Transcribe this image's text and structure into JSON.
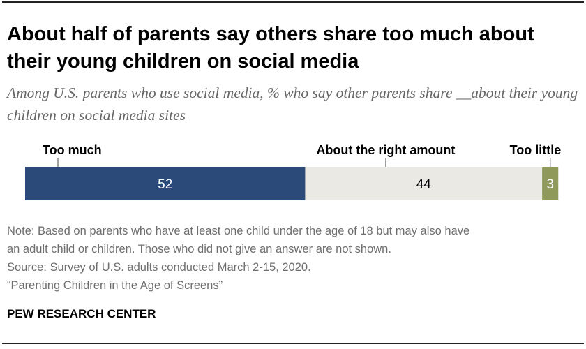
{
  "title": "About half of parents say others share too much about their young children on social media",
  "subtitle": "Among U.S. parents who use social media, % who say other parents share __about their young children on social media sites",
  "chart_data": {
    "type": "bar",
    "orientation": "horizontal-stacked",
    "categories": [
      "Too much",
      "About the right amount",
      "Too little"
    ],
    "values": [
      52,
      44,
      3
    ],
    "data_labels": [
      "52",
      "44",
      "3"
    ],
    "colors": [
      "#2b4a7a",
      "#ebe9e4",
      "#8f9a5a"
    ],
    "label_colors": [
      "#ffffff",
      "#000000",
      "#ffffff"
    ],
    "legend": "inline labels above bar",
    "grid": false
  },
  "notes": [
    "Note: Based on parents who have at least one child under the age of 18 but may also have",
    "an adult child or children. Those who did not give an answer are not shown.",
    "Source: Survey of U.S. adults conducted March 2-15, 2020.",
    "“Parenting Children in the Age of Screens”"
  ],
  "brand": "PEW RESEARCH CENTER"
}
